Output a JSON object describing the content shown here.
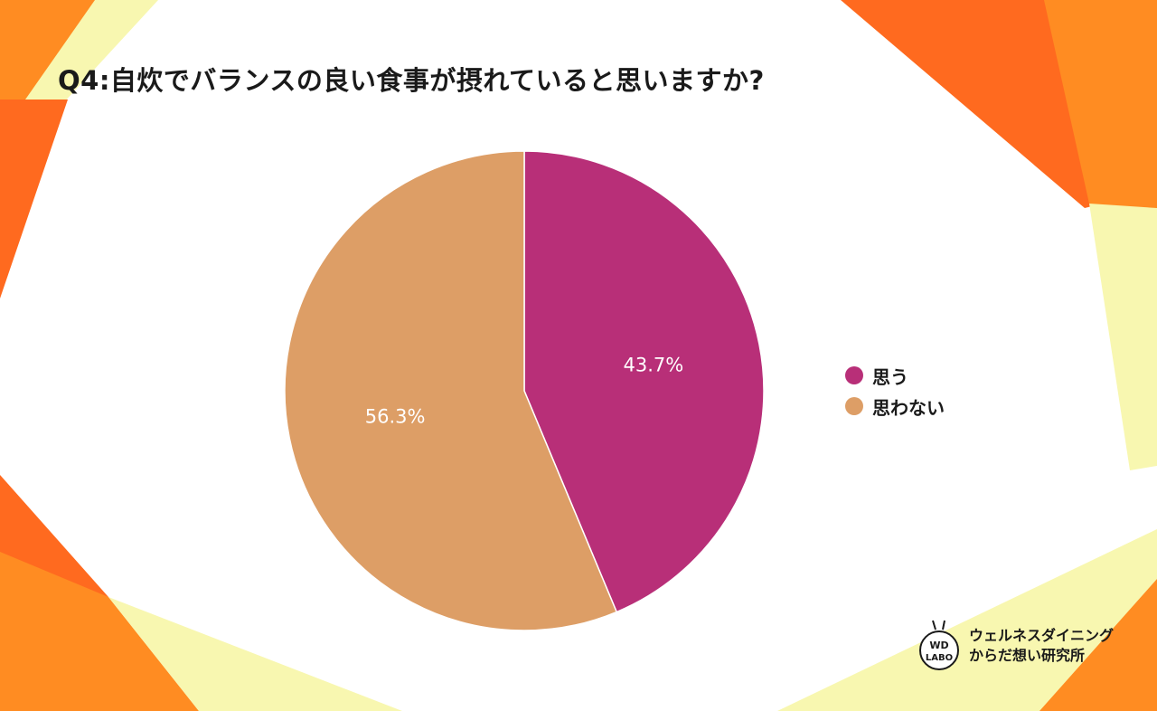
{
  "title": "Q4:自炊でバランスの良い食事が摂れていると思いますか?",
  "chart_data": {
    "type": "pie",
    "title": "Q4:自炊でバランスの良い食事が摂れていると思いますか?",
    "categories": [
      "思う",
      "思わない"
    ],
    "values": [
      43.7,
      56.3
    ],
    "value_labels": [
      "43.7%",
      "56.3%"
    ],
    "colors": [
      "#b82f78",
      "#dd9e66"
    ],
    "start": "12 o'clock",
    "direction": "clockwise",
    "legend": "right"
  },
  "legend": {
    "items": [
      {
        "label": "思う",
        "color": "#b82f78"
      },
      {
        "label": "思わない",
        "color": "#dd9e66"
      }
    ]
  },
  "brand": {
    "logo_text_top": "WD",
    "logo_text_bottom": "LABO",
    "name_line1": "ウェルネスダイニング",
    "name_line2": "からだ想い研究所"
  },
  "colors": {
    "orange_dark": "#ff6a1f",
    "orange": "#ff8c22",
    "yellow_light": "#f8f7b0",
    "background": "#ffffff"
  }
}
